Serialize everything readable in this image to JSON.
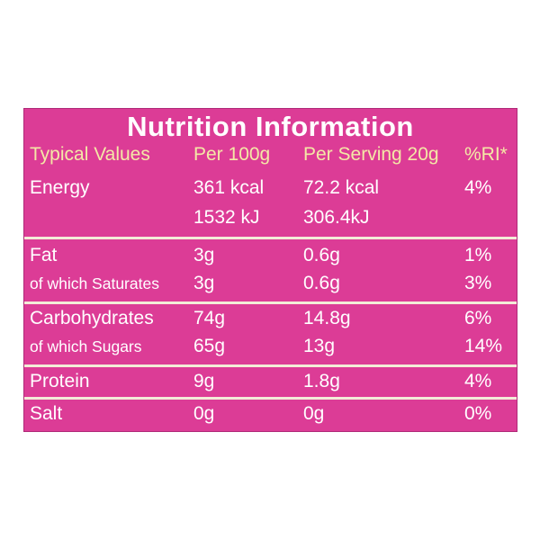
{
  "title": "Nutrition Information",
  "header": [
    "Typical Values",
    "Per 100g",
    "Per Serving 20g",
    "%RI*"
  ],
  "energy": {
    "label": "Energy",
    "per100_kcal": "361 kcal",
    "serving_kcal": "72.2 kcal",
    "ri": "4%",
    "per100_kj": "1532 kJ",
    "serving_kj": "306.4kJ"
  },
  "rows": [
    {
      "label": "Fat",
      "per100": "3g",
      "serving": "0.6g",
      "ri": "1%"
    },
    {
      "label": "of which Saturates",
      "per100": "3g",
      "serving": "0.6g",
      "ri": "3%"
    },
    {
      "label": "Carbohydrates",
      "per100": "74g",
      "serving": "14.8g",
      "ri": "6%"
    },
    {
      "label": "of which Sugars",
      "per100": "65g",
      "serving": "13g",
      "ri": "14%"
    },
    {
      "label": "Protein",
      "per100": "9g",
      "serving": "1.8g",
      "ri": "4%"
    },
    {
      "label": "Salt",
      "per100": "0g",
      "serving": "0g",
      "ri": "0%"
    }
  ],
  "colors": {
    "panel": "#dc3c96",
    "header_text": "#f4e8a6",
    "body_text": "#ffffff",
    "divider": "#f3ecd8"
  }
}
